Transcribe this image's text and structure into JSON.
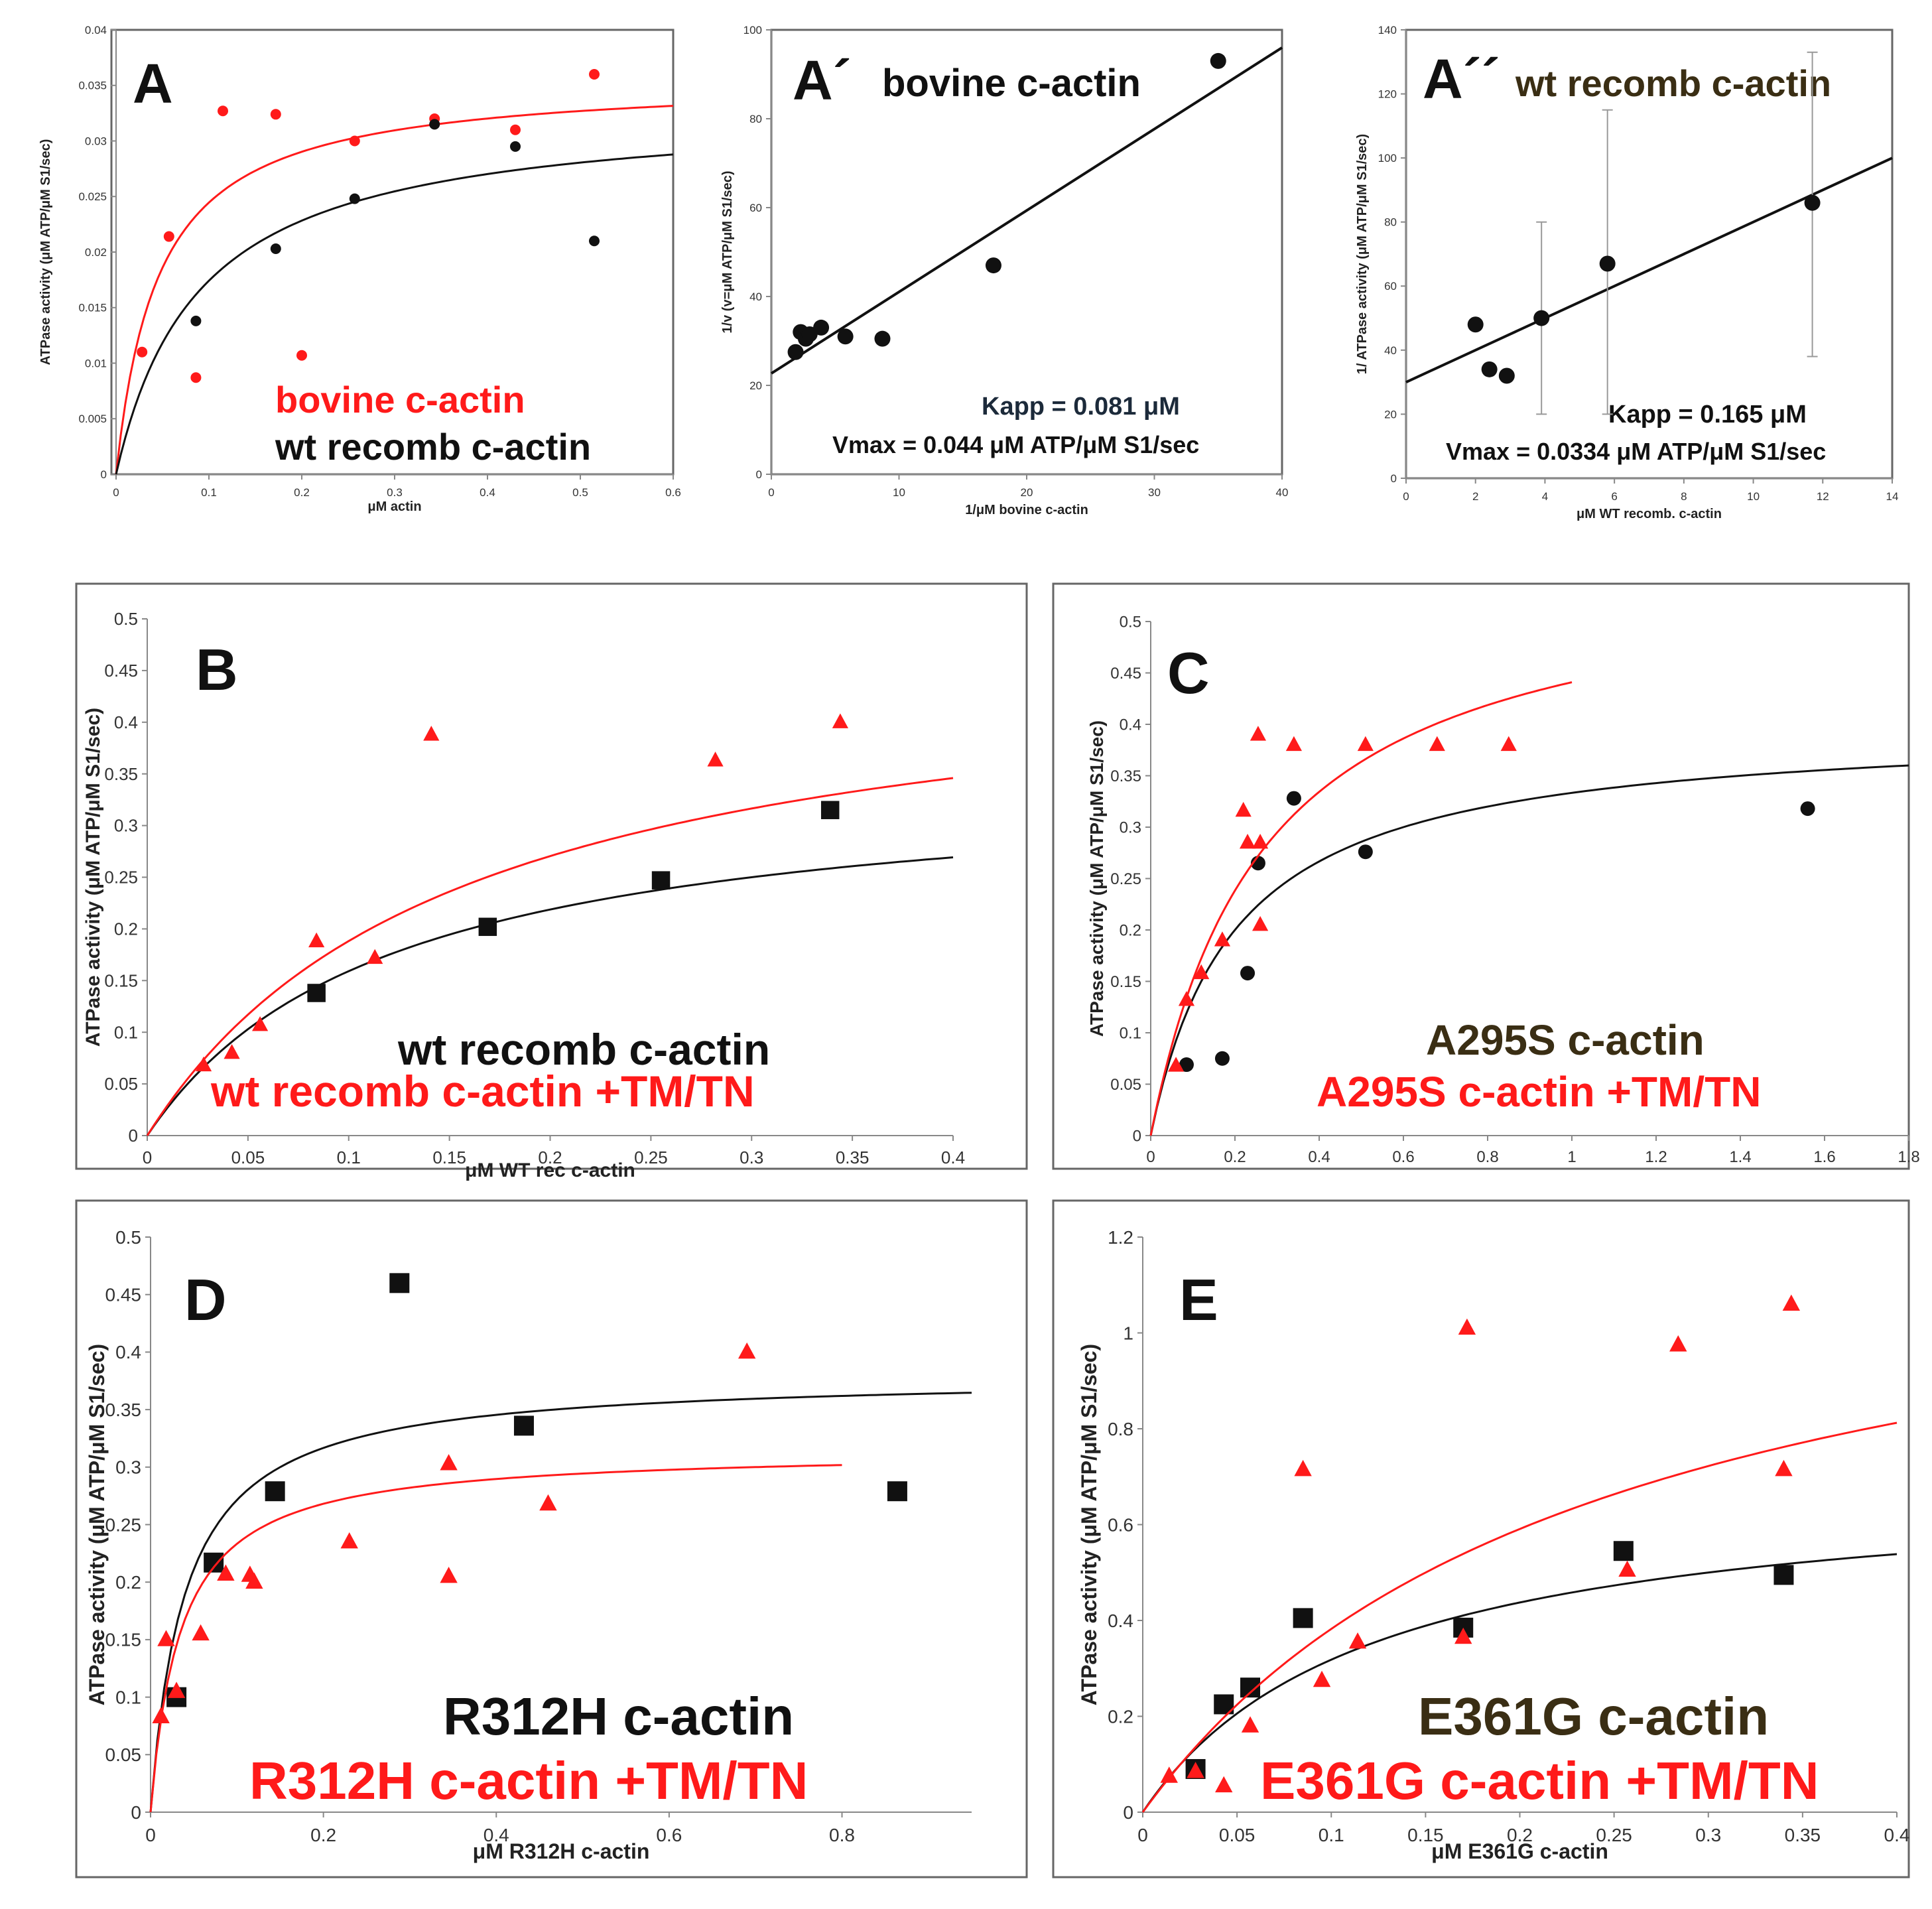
{
  "colors": {
    "red": "#ff1a1a",
    "black": "#111111",
    "dark": "#3a2e14",
    "kapp_dark": "#1c2a3a"
  },
  "chart_data": [
    {
      "id": "A",
      "type": "scatter",
      "panel_label": "A",
      "xlabel": "μM actin",
      "ylabel": "ATPase activity (μM ATP/μM S1/sec)",
      "xlim": [
        0,
        0.6
      ],
      "ylim": [
        0,
        0.04
      ],
      "xticks": [
        "0",
        "0.1",
        "0.2",
        "0.3",
        "0.4",
        "0.5",
        "0.6"
      ],
      "yticks": [
        "0",
        "0.005",
        "0.01",
        "0.015",
        "0.02",
        "0.025",
        "0.03",
        "0.035",
        "0.04"
      ],
      "legend": [
        {
          "text": "bovine c-actin",
          "color": "#ff1a1a"
        },
        {
          "text": "wt recomb c-actin",
          "color": "#111111"
        }
      ],
      "series": [
        {
          "color": "#ff1a1a",
          "marker": "circle",
          "fit": {
            "vmax": 0.0357,
            "k": 0.046,
            "xmax": 0.6
          },
          "points": [
            [
              0.028,
              0.011
            ],
            [
              0.057,
              0.0214
            ],
            [
              0.086,
              0.0087
            ],
            [
              0.115,
              0.0327
            ],
            [
              0.172,
              0.0324
            ],
            [
              0.2,
              0.0107
            ],
            [
              0.257,
              0.03
            ],
            [
              0.343,
              0.032
            ],
            [
              0.43,
              0.031
            ],
            [
              0.515,
              0.036
            ]
          ]
        },
        {
          "color": "#111111",
          "marker": "circle",
          "fit": {
            "vmax": 0.0331,
            "k": 0.09,
            "xmax": 0.6
          },
          "points": [
            [
              0.086,
              0.0138
            ],
            [
              0.172,
              0.0203
            ],
            [
              0.257,
              0.0248
            ],
            [
              0.343,
              0.0315
            ],
            [
              0.43,
              0.0295
            ],
            [
              0.515,
              0.021
            ]
          ]
        }
      ]
    },
    {
      "id": "A1",
      "type": "scatter",
      "panel_label": "A´",
      "title": "bovine c-actin",
      "xlabel": "1/μM bovine c-actin",
      "ylabel": "1/v (v=μM ATP/μM S1/sec)",
      "xlim": [
        0,
        40
      ],
      "ylim": [
        0,
        100
      ],
      "xticks": [
        "0",
        "10",
        "20",
        "30",
        "40"
      ],
      "yticks": [
        "0",
        "20",
        "40",
        "60",
        "80",
        "100"
      ],
      "kapp": "Kapp = 0.081 μM",
      "vmax": "Vmax = 0.044 μM ATP/μM S1/sec",
      "series": [
        {
          "color": "#111111",
          "marker": "circle",
          "line": [
            [
              0,
              22.7
            ],
            [
              40,
              96
            ]
          ],
          "points": [
            [
              1.9,
              27.5
            ],
            [
              2.3,
              32
            ],
            [
              2.7,
              30.5
            ],
            [
              3.0,
              31.5
            ],
            [
              3.9,
              33
            ],
            [
              5.8,
              31
            ],
            [
              8.7,
              30.5
            ],
            [
              17.4,
              47
            ],
            [
              35,
              93
            ]
          ]
        }
      ]
    },
    {
      "id": "A2",
      "type": "scatter",
      "panel_label": "A´´",
      "title": "wt recomb c-actin",
      "xlabel": "μM WT recomb. c-actin",
      "ylabel": "1/ ATPase activity (μM ATP/μM S1/sec)",
      "xlim": [
        0,
        14
      ],
      "ylim": [
        0,
        140
      ],
      "xticks": [
        "0",
        "2",
        "4",
        "6",
        "8",
        "10",
        "12",
        "14"
      ],
      "yticks": [
        "0",
        "20",
        "40",
        "60",
        "80",
        "100",
        "120",
        "140"
      ],
      "kapp": "Kapp = 0.165 μM",
      "vmax": "Vmax = 0.0334 μM ATP/μM S1/sec",
      "series": [
        {
          "color": "#111111",
          "marker": "circle",
          "line": [
            [
              0,
              30
            ],
            [
              14,
              100
            ]
          ],
          "points": [
            [
              2.0,
              48
            ],
            [
              2.4,
              34
            ],
            [
              2.9,
              32
            ],
            [
              3.9,
              50
            ],
            [
              5.8,
              67
            ],
            [
              11.7,
              86
            ]
          ],
          "errors": [
            [
              3.9,
              20,
              80
            ],
            [
              5.8,
              20,
              115
            ],
            [
              11.7,
              38,
              133
            ]
          ]
        }
      ]
    },
    {
      "id": "B",
      "type": "scatter",
      "panel_label": "B",
      "xlabel": "μM WT rec c-actin",
      "ylabel": "ATPase activity (μM ATP/μM S1/sec)",
      "xlim": [
        0,
        0.4
      ],
      "ylim": [
        0,
        0.5
      ],
      "xticks": [
        "0",
        "0.05",
        "0.1",
        "0.15",
        "0.2",
        "0.25",
        "0.3",
        "0.35",
        "0.4"
      ],
      "yticks": [
        "0",
        "0.05",
        "0.1",
        "0.15",
        "0.2",
        "0.25",
        "0.3",
        "0.35",
        "0.4",
        "0.45",
        "0.5"
      ],
      "legend": [
        {
          "text": "wt recomb c-actin",
          "color": "#111111"
        },
        {
          "text": "wt recomb c-actin +TM/TN",
          "color": "#ff1a1a"
        }
      ],
      "series": [
        {
          "color": "#111111",
          "marker": "square",
          "fit": {
            "vmax": 0.35,
            "k": 0.12,
            "xmax": 0.4
          },
          "points": [
            [
              0.084,
              0.138
            ],
            [
              0.169,
              0.202
            ],
            [
              0.255,
              0.247
            ],
            [
              0.339,
              0.315
            ]
          ]
        },
        {
          "color": "#ff1a1a",
          "marker": "triangle",
          "fit": {
            "vmax": 0.48,
            "k": 0.155,
            "xmax": 0.4
          },
          "points": [
            [
              0.028,
              0.068
            ],
            [
              0.042,
              0.08
            ],
            [
              0.056,
              0.107
            ],
            [
              0.084,
              0.188
            ],
            [
              0.113,
              0.172
            ],
            [
              0.141,
              0.388
            ],
            [
              0.282,
              0.363
            ],
            [
              0.344,
              0.4
            ]
          ]
        }
      ]
    },
    {
      "id": "C",
      "type": "scatter",
      "panel_label": "C",
      "xlabel": "",
      "ylabel": "ATPase activity (μM ATP/μM S1/sec)",
      "xlim": [
        0,
        1.8
      ],
      "ylim": [
        0,
        0.5
      ],
      "xticks": [
        "0",
        "0.2",
        "0.4",
        "0.6",
        "0.8",
        "1",
        "1.2",
        "1.4",
        "1.6",
        "1.8"
      ],
      "yticks": [
        "0",
        "0.05",
        "0.1",
        "0.15",
        "0.2",
        "0.25",
        "0.3",
        "0.35",
        "0.4",
        "0.45",
        "0.5"
      ],
      "legend": [
        {
          "text": "A295S c-actin",
          "color": "#3a2e14"
        },
        {
          "text": "A295S c-actin +TM/TN",
          "color": "#ff1a1a"
        }
      ],
      "series": [
        {
          "color": "#111111",
          "marker": "circle",
          "fit": {
            "vmax": 0.4,
            "k": 0.2,
            "xmax": 1.8
          },
          "points": [
            [
              0.085,
              0.069
            ],
            [
              0.17,
              0.075
            ],
            [
              0.23,
              0.158
            ],
            [
              0.255,
              0.265
            ],
            [
              0.34,
              0.328
            ],
            [
              0.51,
              0.276
            ],
            [
              1.56,
              0.318
            ]
          ]
        },
        {
          "color": "#ff1a1a",
          "marker": "triangle",
          "fit": {
            "vmax": 0.56,
            "k": 0.27,
            "xmax": 1.0
          },
          "points": [
            [
              0.06,
              0.068
            ],
            [
              0.085,
              0.132
            ],
            [
              0.12,
              0.158
            ],
            [
              0.17,
              0.19
            ],
            [
              0.22,
              0.316
            ],
            [
              0.23,
              0.285
            ],
            [
              0.255,
              0.39
            ],
            [
              0.26,
              0.285
            ],
            [
              0.26,
              0.205
            ],
            [
              0.34,
              0.38
            ],
            [
              0.51,
              0.38
            ],
            [
              0.68,
              0.38
            ],
            [
              0.85,
              0.38
            ]
          ]
        }
      ]
    },
    {
      "id": "D",
      "type": "scatter",
      "panel_label": "D",
      "xlabel": "μM R312H c-actin",
      "ylabel": "ATPase activity (μM ATP/μM S1/sec)",
      "xlim": [
        0,
        0.95
      ],
      "ylim": [
        0,
        0.5
      ],
      "xticks": [
        "0",
        "0.2",
        "0.4",
        "0.6",
        "0.8"
      ],
      "xtickvals": [
        0,
        0.2,
        0.4,
        0.6,
        0.8
      ],
      "yticks": [
        "0",
        "0.05",
        "0.1",
        "0.15",
        "0.2",
        "0.25",
        "0.3",
        "0.35",
        "0.4",
        "0.45",
        "0.5"
      ],
      "legend": [
        {
          "text": "R312H c-actin",
          "color": "#111111"
        },
        {
          "text": "R312H c-actin +TM/TN",
          "color": "#ff1a1a"
        }
      ],
      "series": [
        {
          "color": "#111111",
          "marker": "square",
          "fit": {
            "vmax": 0.38,
            "k": 0.04,
            "xmax": 0.95
          },
          "points": [
            [
              0.03,
              0.1
            ],
            [
              0.073,
              0.217
            ],
            [
              0.144,
              0.279
            ],
            [
              0.288,
              0.46
            ],
            [
              0.432,
              0.336
            ],
            [
              0.864,
              0.279
            ]
          ]
        },
        {
          "color": "#ff1a1a",
          "marker": "triangle",
          "fit": {
            "vmax": 0.315,
            "k": 0.035,
            "xmax": 0.8
          },
          "points": [
            [
              0.012,
              0.083
            ],
            [
              0.018,
              0.15
            ],
            [
              0.03,
              0.105
            ],
            [
              0.058,
              0.155
            ],
            [
              0.087,
              0.207
            ],
            [
              0.115,
              0.206
            ],
            [
              0.12,
              0.2
            ],
            [
              0.23,
              0.235
            ],
            [
              0.345,
              0.303
            ],
            [
              0.345,
              0.205
            ],
            [
              0.46,
              0.268
            ],
            [
              0.69,
              0.4
            ]
          ]
        }
      ]
    },
    {
      "id": "E",
      "type": "scatter",
      "panel_label": "E",
      "xlabel": "μM E361G c-actin",
      "ylabel": "ATPase activity (μM ATP/μM S1/sec)",
      "xlim": [
        0,
        0.4
      ],
      "ylim": [
        0,
        1.2
      ],
      "xticks": [
        "0",
        "0.05",
        "0.1",
        "0.15",
        "0.2",
        "0.25",
        "0.3",
        "0.35",
        "0.4"
      ],
      "yticks": [
        "0",
        "0.2",
        "0.4",
        "0.6",
        "0.8",
        "1",
        "1.2"
      ],
      "legend": [
        {
          "text": "E361G c-actin",
          "color": "#3a2e14"
        },
        {
          "text": "E361G c-actin +TM/TN",
          "color": "#ff1a1a"
        }
      ],
      "series": [
        {
          "color": "#111111",
          "marker": "square",
          "fit": {
            "vmax": 0.7,
            "k": 0.12,
            "xmax": 0.4
          },
          "points": [
            [
              0.028,
              0.09
            ],
            [
              0.043,
              0.225
            ],
            [
              0.057,
              0.26
            ],
            [
              0.085,
              0.405
            ],
            [
              0.17,
              0.385
            ],
            [
              0.255,
              0.545
            ],
            [
              0.34,
              0.495
            ]
          ]
        },
        {
          "color": "#ff1a1a",
          "marker": "triangle",
          "fit": {
            "vmax": 1.3,
            "k": 0.24,
            "xmax": 0.4
          },
          "points": [
            [
              0.014,
              0.075
            ],
            [
              0.028,
              0.085
            ],
            [
              0.043,
              0.055
            ],
            [
              0.057,
              0.18
            ],
            [
              0.085,
              0.715
            ],
            [
              0.095,
              0.275
            ],
            [
              0.114,
              0.355
            ],
            [
              0.17,
              0.365
            ],
            [
              0.172,
              1.01
            ],
            [
              0.257,
              0.505
            ],
            [
              0.284,
              0.975
            ],
            [
              0.34,
              0.715
            ],
            [
              0.344,
              1.06
            ]
          ]
        }
      ]
    }
  ]
}
